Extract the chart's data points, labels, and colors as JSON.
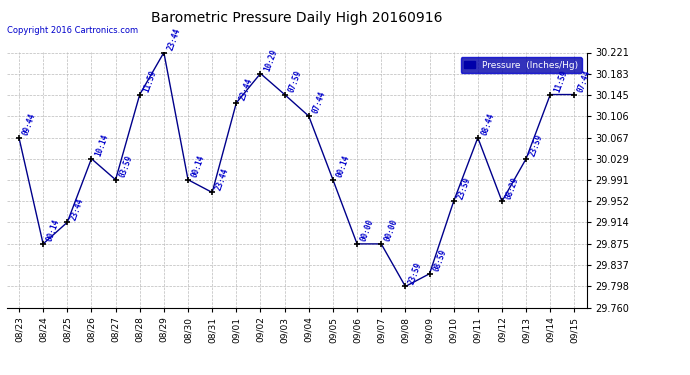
{
  "title": "Barometric Pressure Daily High 20160916",
  "copyright": "Copyright 2016 Cartronics.com",
  "legend_label": "Pressure  (Inches/Hg)",
  "background_color": "#ffffff",
  "plot_bg_color": "#ffffff",
  "line_color": "#00008b",
  "marker_color": "#000000",
  "annotation_color": "#0000cc",
  "ytick_color": "#000000",
  "ylim": [
    29.76,
    30.221
  ],
  "ytick_values": [
    29.76,
    29.798,
    29.837,
    29.875,
    29.914,
    29.952,
    29.991,
    30.029,
    30.067,
    30.106,
    30.145,
    30.183,
    30.221
  ],
  "data_points": [
    {
      "date": "08/23",
      "time": "09:44",
      "value": 30.067
    },
    {
      "date": "08/24",
      "time": "00:14",
      "value": 29.875
    },
    {
      "date": "08/25",
      "time": "23:44",
      "value": 29.914
    },
    {
      "date": "08/26",
      "time": "10:14",
      "value": 30.029
    },
    {
      "date": "08/27",
      "time": "03:59",
      "value": 29.991
    },
    {
      "date": "08/28",
      "time": "11:59",
      "value": 30.145
    },
    {
      "date": "08/29",
      "time": "23:44",
      "value": 30.221
    },
    {
      "date": "08/30",
      "time": "00:14",
      "value": 29.991
    },
    {
      "date": "08/31",
      "time": "23:44",
      "value": 29.968
    },
    {
      "date": "09/01",
      "time": "23:44",
      "value": 30.13
    },
    {
      "date": "09/02",
      "time": "10:29",
      "value": 30.183
    },
    {
      "date": "09/03",
      "time": "07:59",
      "value": 30.145
    },
    {
      "date": "09/04",
      "time": "07:44",
      "value": 30.106
    },
    {
      "date": "09/05",
      "time": "00:14",
      "value": 29.991
    },
    {
      "date": "09/06",
      "time": "00:00",
      "value": 29.875
    },
    {
      "date": "09/07",
      "time": "00:00",
      "value": 29.875
    },
    {
      "date": "09/08",
      "time": "23:59",
      "value": 29.798
    },
    {
      "date": "09/09",
      "time": "08:59",
      "value": 29.821
    },
    {
      "date": "09/10",
      "time": "23:59",
      "value": 29.952
    },
    {
      "date": "09/11",
      "time": "08:44",
      "value": 30.067
    },
    {
      "date": "09/12",
      "time": "08:29",
      "value": 29.952
    },
    {
      "date": "09/13",
      "time": "23:59",
      "value": 30.029
    },
    {
      "date": "09/14",
      "time": "11:59",
      "value": 30.145
    },
    {
      "date": "09/15",
      "time": "07:44",
      "value": 30.145
    }
  ]
}
